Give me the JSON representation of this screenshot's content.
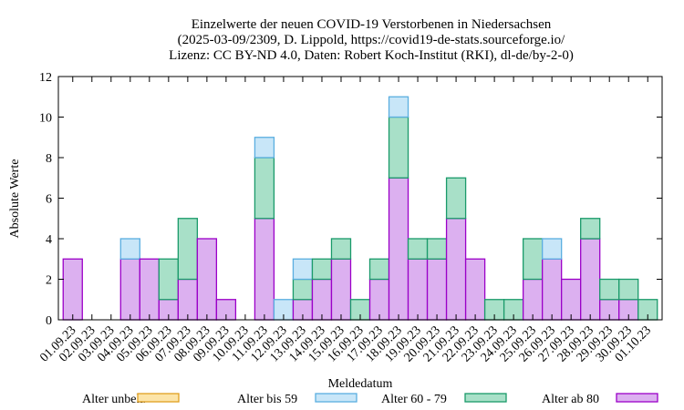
{
  "chart_data": {
    "type": "bar",
    "stacked": true,
    "title_lines": [
      "Einzelwerte der neuen COVID-19 Verstorbenen in Niedersachsen",
      "(2025-03-09/2309, D. Lippold, https://covid19-de-stats.sourceforge.io/",
      "Lizenz: CC BY-ND 4.0, Daten: Robert Koch-Institut (RKI), dl-de/by-2-0)"
    ],
    "xlabel": "Meldedatum",
    "ylabel": "Absolute Werte",
    "ylim": [
      0,
      12
    ],
    "yticks": [
      0,
      2,
      4,
      6,
      8,
      10,
      12
    ],
    "grid": false,
    "legend_position": "bottom",
    "categories": [
      "01.09.23",
      "02.09.23",
      "03.09.23",
      "04.09.23",
      "05.09.23",
      "06.09.23",
      "07.09.23",
      "08.09.23",
      "09.09.23",
      "10.09.23",
      "11.09.23",
      "12.09.23",
      "13.09.23",
      "14.09.23",
      "15.09.23",
      "16.09.23",
      "17.09.23",
      "18.09.23",
      "19.09.23",
      "20.09.23",
      "21.09.23",
      "22.09.23",
      "23.09.23",
      "24.09.23",
      "25.09.23",
      "26.09.23",
      "27.09.23",
      "28.09.23",
      "29.09.23",
      "30.09.23",
      "01.10.23"
    ],
    "series": [
      {
        "name": "Alter ab 80",
        "fill": "#dcb0f0",
        "stroke": "#9b00c8",
        "values": [
          3,
          0,
          0,
          3,
          3,
          1,
          2,
          4,
          1,
          0,
          5,
          0,
          1,
          2,
          3,
          0,
          2,
          7,
          3,
          3,
          5,
          3,
          0,
          0,
          2,
          3,
          2,
          4,
          1,
          1,
          0
        ]
      },
      {
        "name": "Alter 60 - 79",
        "fill": "#a8e0c8",
        "stroke": "#1a9a6a",
        "values": [
          0,
          0,
          0,
          0,
          0,
          2,
          3,
          0,
          0,
          0,
          3,
          0,
          1,
          1,
          1,
          1,
          1,
          3,
          1,
          1,
          2,
          0,
          1,
          1,
          2,
          0,
          0,
          1,
          1,
          1,
          1
        ]
      },
      {
        "name": "Alter bis 59",
        "fill": "#c8e6f8",
        "stroke": "#5aaee0",
        "values": [
          0,
          0,
          0,
          1,
          0,
          0,
          0,
          0,
          0,
          0,
          1,
          1,
          1,
          0,
          0,
          0,
          0,
          1,
          0,
          0,
          0,
          0,
          0,
          0,
          0,
          1,
          0,
          0,
          0,
          0,
          0
        ]
      },
      {
        "name": "Alter unbek.",
        "fill": "#fce4a8",
        "stroke": "#e0a020",
        "values": [
          0,
          0,
          0,
          0,
          0,
          0,
          0,
          0,
          0,
          0,
          0,
          0,
          0,
          0,
          0,
          0,
          0,
          0,
          0,
          0,
          0,
          0,
          0,
          0,
          0,
          0,
          0,
          0,
          0,
          0,
          0
        ]
      }
    ],
    "legend_order": [
      "Alter unbek.",
      "Alter bis 59",
      "Alter 60 - 79",
      "Alter ab 80"
    ]
  }
}
